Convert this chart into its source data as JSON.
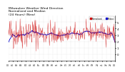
{
  "title": "Milwaukee Weather Wind Direction\nNormalized and Median\n(24 Hours) (New)",
  "title_fontsize": 3.2,
  "bg_color": "#ffffff",
  "plot_bg_color": "#ffffff",
  "grid_color": "#cccccc",
  "line_color_main": "#cc0000",
  "line_color_median": "#0000cc",
  "legend_labels": [
    "Normalized",
    "Median"
  ],
  "legend_colors": [
    "#cc0000",
    "#0000cc"
  ],
  "ylim": [
    -1,
    6
  ],
  "yticks": [
    0,
    1,
    2,
    3,
    4,
    5
  ],
  "ytick_labels": [
    "0",
    "1",
    "2",
    "3",
    "4",
    "5"
  ],
  "ylabel_fontsize": 2.8,
  "xlabel_fontsize": 2.2,
  "n_points": 288,
  "seed": 42,
  "base_value": 3.2,
  "noise_scale": 0.7,
  "median_smooth": 20,
  "x_tick_count": 24
}
